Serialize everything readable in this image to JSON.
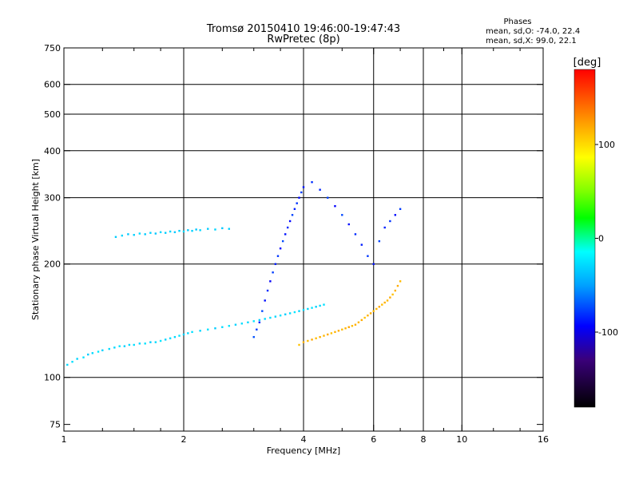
{
  "chart_data": {
    "type": "scatter",
    "title": "Tromsø 20150410 19:46:00-19:47:43",
    "subtitle": "RwPretec (8p)",
    "xlabel": "Frequency [MHz]",
    "ylabel": "Stationary phase Virtual Height [km]",
    "x_scale": "log",
    "y_scale": "log",
    "xlim": [
      1,
      16
    ],
    "ylim": [
      72,
      750
    ],
    "x_ticks": [
      1,
      2,
      4,
      6,
      8,
      10,
      16
    ],
    "x_minor_ticks": [
      1.25,
      1.5,
      1.75,
      2.5,
      3,
      3.5,
      5,
      7,
      9,
      12,
      14
    ],
    "y_ticks": [
      75,
      100,
      200,
      300,
      400,
      500,
      600,
      750
    ],
    "grid": true,
    "grid_x": [
      2,
      4,
      6,
      8,
      10
    ],
    "grid_y": [
      100,
      200,
      300,
      400,
      500,
      600
    ],
    "legend": {
      "title": "Phases",
      "lines": [
        "mean, sd,O: -74.0, 22.4",
        "mean, sd,X:  99.0, 22.1"
      ]
    },
    "colorbar": {
      "title": "[deg]",
      "range": [
        -180,
        180
      ],
      "ticks": [
        100,
        0,
        -100
      ],
      "tick_labels": [
        "100",
        "0",
        "-100"
      ],
      "colors": [
        "#000000",
        "#3a007a",
        "#0000ff",
        "#00a0ff",
        "#00ffff",
        "#00ff00",
        "#80ff00",
        "#ffff00",
        "#ffa000",
        "#ff5000",
        "#ff0000"
      ]
    },
    "series": [
      {
        "x": [
          1.02,
          1.05,
          1.08,
          1.12,
          1.15,
          1.18,
          1.22,
          1.25,
          1.3,
          1.34,
          1.38,
          1.42,
          1.46,
          1.5,
          1.55,
          1.6,
          1.65,
          1.7,
          1.75,
          1.8,
          1.85,
          1.9,
          1.95,
          2.0,
          2.05,
          2.1,
          2.2,
          2.3,
          2.4,
          2.5,
          2.6,
          2.7,
          2.8,
          2.9,
          3.0,
          3.1,
          3.2,
          3.3,
          3.4,
          3.5,
          3.6,
          3.7,
          3.8,
          3.9,
          4.0,
          4.1,
          4.2,
          4.3,
          4.4,
          4.5
        ],
        "y": [
          108,
          110,
          112,
          113,
          115,
          116,
          117,
          118,
          119,
          120,
          121,
          121,
          122,
          122,
          123,
          123,
          124,
          124,
          125,
          126,
          127,
          128,
          129,
          130,
          131,
          132,
          133,
          134,
          135,
          136,
          137,
          138,
          139,
          140,
          141,
          142,
          143,
          144,
          145,
          146,
          147,
          148,
          149,
          150,
          151,
          152,
          153,
          154,
          155,
          156
        ],
        "phase": [
          -50,
          -48,
          -52,
          -47,
          -55,
          -50,
          -45,
          -53,
          -49,
          -51,
          -46,
          -54,
          -50,
          -48,
          -52,
          -47,
          -55,
          -50,
          -45,
          -53,
          -49,
          -51,
          -46,
          -54,
          -50,
          -48,
          -52,
          -47,
          -55,
          -50,
          -45,
          -53,
          -49,
          -51,
          -46,
          -54,
          -50,
          -48,
          -52,
          -47,
          -55,
          -50,
          -45,
          -53,
          -49,
          -51,
          -46,
          -54,
          -50,
          -48
        ]
      },
      {
        "x": [
          1.35,
          1.4,
          1.45,
          1.5,
          1.55,
          1.6,
          1.65,
          1.7,
          1.75,
          1.8,
          1.85,
          1.9,
          1.95,
          2.0,
          2.05,
          2.1,
          2.15,
          2.2,
          2.3,
          2.4,
          2.5,
          2.6
        ],
        "y": [
          236,
          238,
          240,
          239,
          241,
          240,
          242,
          241,
          243,
          242,
          244,
          243,
          245,
          244,
          246,
          245,
          247,
          246,
          248,
          247,
          249,
          248
        ],
        "phase": [
          -55,
          -52,
          -57,
          -54,
          -50,
          -56,
          -53,
          -58,
          -51,
          -55,
          -52,
          -57,
          -54,
          -50,
          -56,
          -53,
          -58,
          -51,
          -55,
          -52,
          -57,
          -54
        ]
      },
      {
        "x": [
          3.0,
          3.05,
          3.1,
          3.15,
          3.2,
          3.25,
          3.3,
          3.35,
          3.4,
          3.45,
          3.5,
          3.55,
          3.6,
          3.65,
          3.7,
          3.75,
          3.8,
          3.85,
          3.9,
          3.95,
          4.0,
          4.2,
          4.4,
          4.6,
          4.8,
          5.0,
          5.2,
          5.4,
          5.6,
          5.8,
          6.0,
          6.2,
          6.4,
          6.6,
          6.8,
          7.0
        ],
        "y": [
          128,
          134,
          140,
          150,
          160,
          170,
          180,
          190,
          200,
          210,
          220,
          230,
          240,
          250,
          260,
          270,
          280,
          290,
          300,
          310,
          320,
          330,
          315,
          300,
          285,
          270,
          255,
          240,
          225,
          210,
          200,
          230,
          250,
          260,
          270,
          280
        ],
        "phase": [
          -90,
          -95,
          -100,
          -92,
          -105,
          -98,
          -110,
          -94,
          -102,
          -96,
          -108,
          -91,
          -104,
          -99,
          -107,
          -93,
          -101,
          -97,
          -106,
          -95,
          -103,
          -98,
          -100,
          -94,
          -108,
          -92,
          -105,
          -99,
          -102,
          -96,
          -104,
          -93,
          -101,
          -97,
          -106,
          -95
        ]
      },
      {
        "x": [
          3.9,
          4.0,
          4.1,
          4.2,
          4.3,
          4.4,
          4.5,
          4.6,
          4.7,
          4.8,
          4.9,
          5.0,
          5.1,
          5.2,
          5.3,
          5.4,
          5.5,
          5.6,
          5.7,
          5.8,
          5.9,
          6.0,
          6.1,
          6.2,
          6.3,
          6.4,
          6.5,
          6.6,
          6.7,
          6.8,
          6.9,
          7.0
        ],
        "y": [
          122,
          124,
          125,
          126,
          127,
          128,
          129,
          130,
          131,
          132,
          133,
          134,
          135,
          136,
          137,
          138,
          140,
          142,
          144,
          146,
          148,
          150,
          152,
          154,
          156,
          158,
          160,
          163,
          166,
          170,
          175,
          180
        ],
        "phase": [
          95,
          100,
          98,
          105,
          97,
          102,
          99,
          104,
          96,
          101,
          103,
          98,
          100,
          106,
          97,
          102,
          99,
          104,
          95,
          101,
          103,
          98,
          100,
          105,
          97,
          102,
          99,
          104,
          96,
          101,
          103,
          98
        ]
      }
    ]
  }
}
